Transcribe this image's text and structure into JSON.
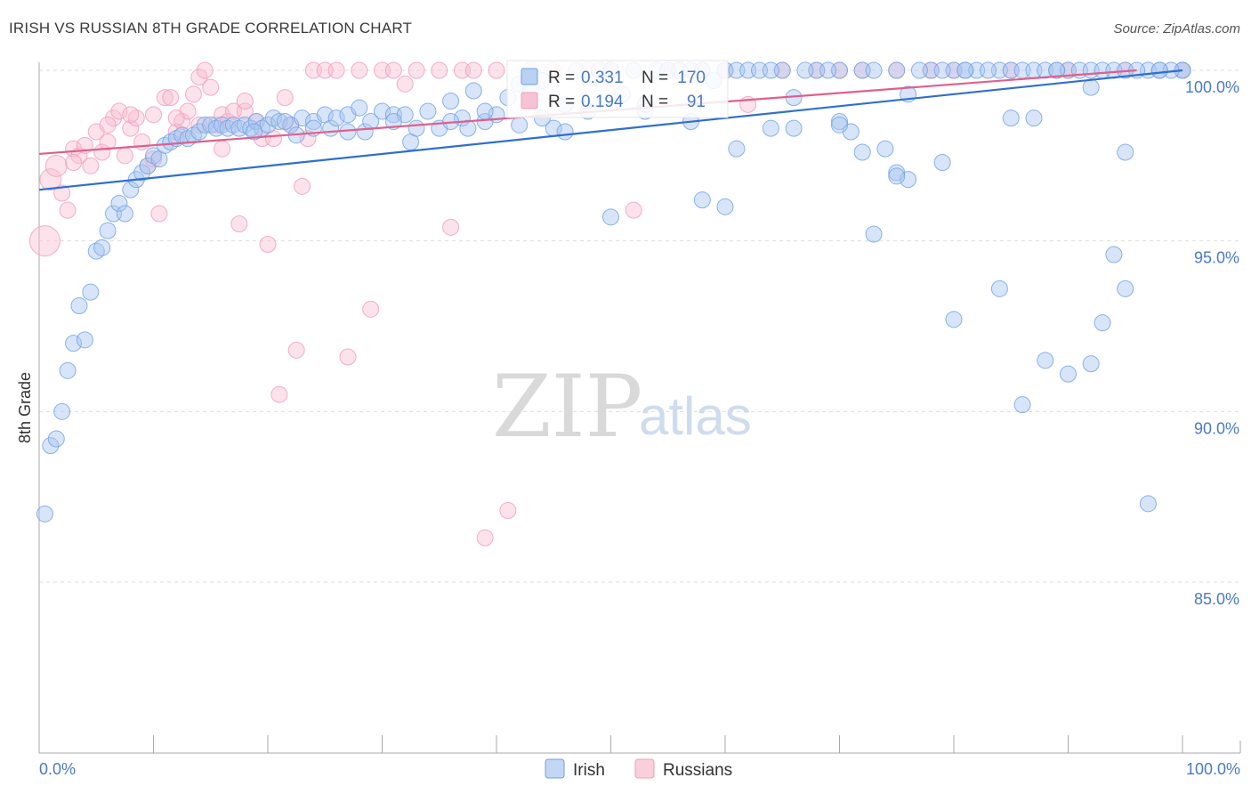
{
  "header": {
    "title": "IRISH VS RUSSIAN 8TH GRADE CORRELATION CHART",
    "source": "Source: ZipAtlas.com"
  },
  "watermark": {
    "zip": "ZIP",
    "atlas": "atlas"
  },
  "colors": {
    "irish": "#6fa0e6",
    "irish_line": "#2f6fce",
    "russians": "#f19cb8",
    "russians_line": "#e0608a",
    "axis_text": "#4a7ac8",
    "grid": "#dddddd"
  },
  "legend_box": {
    "irish": {
      "r_label": "R =",
      "r_value": "0.331",
      "n_label": "N =",
      "n_value": "170"
    },
    "russians": {
      "r_label": "R =",
      "r_value": "0.194",
      "n_label": "N =",
      "n_value": "91"
    }
  },
  "chart_data": {
    "type": "scatter",
    "title": "IRISH VS RUSSIAN 8TH GRADE CORRELATION CHART",
    "xlabel": "",
    "ylabel": "8th Grade",
    "xlim": [
      0,
      100
    ],
    "ylim": [
      80.5,
      100.8
    ],
    "x_tick_labels": [
      "0.0%",
      "100.0%"
    ],
    "y_ticks": [
      {
        "value": 100.0,
        "label": "100.0%"
      },
      {
        "value": 95.0,
        "label": "95.0%"
      },
      {
        "value": 90.0,
        "label": "90.0%"
      },
      {
        "value": 85.0,
        "label": "85.0%"
      }
    ],
    "grid": true,
    "legend": {
      "position": "bottom-center",
      "entries": [
        "Irish",
        "Russians"
      ]
    },
    "series": [
      {
        "name": "Irish",
        "trend": [
          [
            0,
            96.5
          ],
          [
            100,
            100.0
          ]
        ],
        "points": [
          [
            0.5,
            87.0
          ],
          [
            1.0,
            89.0
          ],
          [
            1.5,
            89.2
          ],
          [
            2.0,
            90.0
          ],
          [
            2.5,
            91.2
          ],
          [
            3.0,
            92.0
          ],
          [
            3.5,
            93.1
          ],
          [
            4.0,
            92.1
          ],
          [
            4.5,
            93.5
          ],
          [
            5.0,
            94.7
          ],
          [
            5.5,
            94.8
          ],
          [
            6.0,
            95.3
          ],
          [
            6.5,
            95.8
          ],
          [
            7.0,
            96.1
          ],
          [
            7.5,
            95.8
          ],
          [
            8.0,
            96.5
          ],
          [
            8.5,
            96.8
          ],
          [
            9.0,
            97.0
          ],
          [
            9.5,
            97.2
          ],
          [
            10.0,
            97.5
          ],
          [
            10.5,
            97.4
          ],
          [
            11.0,
            97.8
          ],
          [
            11.5,
            97.9
          ],
          [
            12.0,
            98.0
          ],
          [
            12.5,
            98.1
          ],
          [
            13.0,
            98.0
          ],
          [
            13.5,
            98.1
          ],
          [
            14.0,
            98.2
          ],
          [
            14.5,
            98.4
          ],
          [
            15.0,
            98.4
          ],
          [
            15.5,
            98.3
          ],
          [
            16.0,
            98.4
          ],
          [
            16.5,
            98.3
          ],
          [
            17.0,
            98.4
          ],
          [
            17.5,
            98.3
          ],
          [
            18.0,
            98.4
          ],
          [
            18.5,
            98.3
          ],
          [
            19.0,
            98.5
          ],
          [
            19.5,
            98.3
          ],
          [
            20.0,
            98.4
          ],
          [
            20.5,
            98.6
          ],
          [
            21.0,
            98.5
          ],
          [
            22.0,
            98.4
          ],
          [
            22.5,
            98.1
          ],
          [
            23.0,
            98.6
          ],
          [
            24.0,
            98.5
          ],
          [
            25.0,
            98.7
          ],
          [
            25.5,
            98.3
          ],
          [
            26.0,
            98.6
          ],
          [
            27.0,
            98.7
          ],
          [
            28.0,
            98.9
          ],
          [
            28.5,
            98.2
          ],
          [
            29.0,
            98.5
          ],
          [
            30.0,
            98.8
          ],
          [
            31.0,
            98.7
          ],
          [
            32.0,
            98.7
          ],
          [
            32.5,
            97.9
          ],
          [
            33.0,
            98.3
          ],
          [
            34.0,
            98.8
          ],
          [
            35.0,
            98.3
          ],
          [
            36.0,
            99.1
          ],
          [
            37.0,
            98.6
          ],
          [
            37.5,
            98.3
          ],
          [
            38.0,
            99.4
          ],
          [
            39.0,
            98.5
          ],
          [
            40.0,
            98.7
          ],
          [
            41.0,
            99.2
          ],
          [
            42.0,
            99.6
          ],
          [
            43.0,
            99.4
          ],
          [
            44.0,
            99.7
          ],
          [
            45.0,
            98.3
          ],
          [
            46.0,
            99.0
          ],
          [
            47.0,
            100.0
          ],
          [
            48.0,
            98.8
          ],
          [
            49.0,
            100.0
          ],
          [
            50.0,
            100.0
          ],
          [
            51.0,
            99.3
          ],
          [
            52.0,
            100.0
          ],
          [
            53.0,
            99.0
          ],
          [
            54.0,
            100.0
          ],
          [
            55.0,
            100.0
          ],
          [
            56.0,
            100.0
          ],
          [
            57.0,
            100.0
          ],
          [
            58.0,
            100.0
          ],
          [
            59.0,
            99.7
          ],
          [
            60.0,
            100.0
          ],
          [
            61.0,
            100.0
          ],
          [
            62.0,
            100.0
          ],
          [
            63.0,
            100.0
          ],
          [
            65.0,
            100.0
          ],
          [
            66.0,
            99.2
          ],
          [
            68.0,
            100.0
          ],
          [
            70.0,
            100.0
          ],
          [
            72.0,
            100.0
          ],
          [
            73.0,
            100.0
          ],
          [
            75.0,
            100.0
          ],
          [
            76.0,
            99.3
          ],
          [
            78.0,
            100.0
          ],
          [
            80.0,
            100.0
          ],
          [
            81.0,
            100.0
          ],
          [
            82.0,
            100.0
          ],
          [
            84.0,
            100.0
          ],
          [
            85.0,
            100.0
          ],
          [
            86.0,
            100.0
          ],
          [
            87.0,
            100.0
          ],
          [
            88.0,
            100.0
          ],
          [
            89.0,
            100.0
          ],
          [
            90.0,
            100.0
          ],
          [
            91.0,
            100.0
          ],
          [
            92.0,
            100.0
          ],
          [
            93.0,
            100.0
          ],
          [
            94.0,
            100.0
          ],
          [
            95.0,
            100.0
          ],
          [
            97.0,
            100.0
          ],
          [
            98.0,
            100.0
          ],
          [
            100.0,
            100.0
          ],
          [
            70.0,
            98.5
          ],
          [
            71.0,
            98.2
          ],
          [
            72.0,
            97.6
          ],
          [
            75.0,
            97.0
          ],
          [
            76.0,
            96.8
          ],
          [
            73.0,
            95.2
          ],
          [
            75.0,
            96.9
          ],
          [
            61.0,
            97.7
          ],
          [
            60.0,
            96.0
          ],
          [
            50.0,
            95.7
          ],
          [
            58.0,
            96.2
          ],
          [
            64.0,
            98.3
          ],
          [
            66.0,
            98.3
          ],
          [
            70.0,
            98.4
          ],
          [
            74.0,
            97.7
          ],
          [
            79.0,
            97.3
          ],
          [
            85.0,
            98.6
          ],
          [
            87.0,
            98.6
          ],
          [
            92.0,
            99.5
          ],
          [
            95.0,
            93.6
          ],
          [
            94.0,
            94.6
          ],
          [
            93.0,
            92.6
          ],
          [
            92.0,
            91.4
          ],
          [
            90.0,
            91.1
          ],
          [
            88.0,
            91.5
          ],
          [
            86.0,
            90.2
          ],
          [
            84.0,
            93.6
          ],
          [
            80.0,
            92.7
          ],
          [
            97.0,
            87.3
          ],
          [
            95.0,
            97.6
          ],
          [
            100.0,
            100.0
          ],
          [
            99.0,
            100.0
          ],
          [
            96.0,
            100.0
          ],
          [
            98.0,
            100.0
          ],
          [
            89.0,
            100.0
          ],
          [
            83.0,
            100.0
          ],
          [
            77.0,
            100.0
          ],
          [
            79.0,
            100.0
          ],
          [
            81.0,
            100.0
          ],
          [
            69.0,
            100.0
          ],
          [
            67.0,
            100.0
          ],
          [
            64.0,
            100.0
          ],
          [
            57.0,
            98.5
          ],
          [
            53.0,
            98.8
          ],
          [
            46.0,
            98.2
          ],
          [
            44.0,
            98.6
          ],
          [
            42.0,
            98.4
          ],
          [
            39.0,
            98.8
          ],
          [
            36.0,
            98.5
          ],
          [
            31.0,
            98.5
          ],
          [
            27.0,
            98.2
          ],
          [
            24.0,
            98.3
          ],
          [
            21.5,
            98.5
          ],
          [
            18.8,
            98.2
          ]
        ]
      },
      {
        "name": "Russians",
        "trend": [
          [
            0,
            97.55
          ],
          [
            96,
            100.0
          ]
        ],
        "points": [
          [
            0.5,
            95.0
          ],
          [
            1.0,
            96.8
          ],
          [
            1.5,
            97.2
          ],
          [
            2.0,
            96.4
          ],
          [
            2.5,
            95.9
          ],
          [
            3.0,
            97.7
          ],
          [
            3.5,
            97.5
          ],
          [
            4.0,
            97.8
          ],
          [
            4.5,
            97.2
          ],
          [
            5.0,
            98.2
          ],
          [
            5.5,
            97.6
          ],
          [
            6.0,
            97.9
          ],
          [
            6.5,
            98.6
          ],
          [
            7.0,
            98.8
          ],
          [
            7.5,
            97.5
          ],
          [
            8.0,
            98.3
          ],
          [
            8.5,
            98.6
          ],
          [
            9.0,
            97.9
          ],
          [
            9.5,
            97.2
          ],
          [
            10.0,
            98.7
          ],
          [
            10.5,
            95.8
          ],
          [
            11.0,
            99.2
          ],
          [
            11.5,
            99.2
          ],
          [
            12.0,
            98.2
          ],
          [
            12.5,
            98.5
          ],
          [
            13.0,
            98.8
          ],
          [
            13.5,
            99.3
          ],
          [
            14.0,
            99.8
          ],
          [
            14.5,
            100.0
          ],
          [
            15.0,
            99.5
          ],
          [
            15.5,
            98.4
          ],
          [
            16.0,
            98.7
          ],
          [
            16.5,
            98.5
          ],
          [
            17.0,
            98.8
          ],
          [
            17.5,
            95.5
          ],
          [
            18.0,
            98.8
          ],
          [
            19.0,
            98.5
          ],
          [
            19.5,
            98.0
          ],
          [
            20.0,
            94.9
          ],
          [
            20.5,
            98.0
          ],
          [
            21.0,
            90.5
          ],
          [
            21.5,
            99.2
          ],
          [
            22.0,
            98.4
          ],
          [
            22.5,
            91.8
          ],
          [
            23.0,
            96.6
          ],
          [
            23.5,
            98.0
          ],
          [
            24.0,
            100.0
          ],
          [
            25.0,
            100.0
          ],
          [
            26.0,
            100.0
          ],
          [
            27.0,
            91.6
          ],
          [
            28.0,
            100.0
          ],
          [
            29.0,
            93.0
          ],
          [
            30.0,
            100.0
          ],
          [
            31.0,
            100.0
          ],
          [
            32.0,
            99.6
          ],
          [
            33.0,
            100.0
          ],
          [
            35.0,
            100.0
          ],
          [
            36.0,
            95.4
          ],
          [
            37.0,
            100.0
          ],
          [
            38.0,
            100.0
          ],
          [
            39.0,
            86.3
          ],
          [
            40.0,
            100.0
          ],
          [
            41.0,
            87.1
          ],
          [
            43.0,
            100.0
          ],
          [
            45.0,
            100.0
          ],
          [
            48.0,
            100.0
          ],
          [
            50.0,
            100.0
          ],
          [
            52.0,
            95.9
          ],
          [
            55.0,
            100.0
          ],
          [
            58.0,
            100.0
          ],
          [
            60.0,
            100.0
          ],
          [
            62.0,
            99.0
          ],
          [
            65.0,
            100.0
          ],
          [
            68.0,
            100.0
          ],
          [
            70.0,
            100.0
          ],
          [
            72.0,
            100.0
          ],
          [
            75.0,
            100.0
          ],
          [
            78.0,
            100.0
          ],
          [
            80.0,
            100.0
          ],
          [
            85.0,
            100.0
          ],
          [
            90.0,
            100.0
          ],
          [
            95.0,
            100.0
          ],
          [
            100.0,
            100.0
          ],
          [
            18.0,
            99.1
          ],
          [
            16.0,
            97.7
          ],
          [
            14.0,
            98.4
          ],
          [
            12.0,
            98.6
          ],
          [
            10.0,
            97.4
          ],
          [
            8.0,
            98.7
          ],
          [
            6.0,
            98.4
          ],
          [
            3.0,
            97.3
          ]
        ]
      }
    ]
  }
}
